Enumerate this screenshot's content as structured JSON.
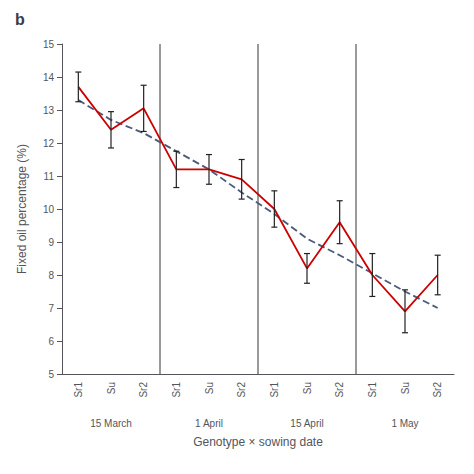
{
  "chart_data": {
    "type": "line",
    "title": "b",
    "categories": [
      "Sr1",
      "Su",
      "Sr2",
      "Sr1",
      "Su",
      "Sr2",
      "Sr1",
      "Su",
      "Sr2",
      "Sr1",
      "Su",
      "Sr2"
    ],
    "group_labels": [
      "15 March",
      "1 April",
      "15 April",
      "1 May"
    ],
    "x_label": "Genotype × sowing date",
    "y_label": "Fixed oil percentage (%)",
    "series": [
      {
        "type": "line",
        "line_style": "dashed",
        "color": "#4a5a7a",
        "values": [
          13.3,
          12.7,
          12.3,
          11.75,
          11.2,
          10.5,
          9.85,
          9.1,
          8.6,
          8.05,
          7.5,
          7.0
        ]
      },
      {
        "type": "line",
        "line_style": "solid",
        "color": "#cc0000",
        "values": [
          13.7,
          12.4,
          13.05,
          11.2,
          11.2,
          10.9,
          10.0,
          8.2,
          9.6,
          8.0,
          6.9,
          8.0
        ],
        "errors": [
          0.45,
          0.55,
          0.7,
          0.55,
          0.45,
          0.6,
          0.55,
          0.45,
          0.65,
          0.65,
          0.65,
          0.6
        ],
        "error_color": "#222222"
      }
    ],
    "ylim": [
      5,
      15
    ],
    "yticks": [
      5,
      6,
      7,
      8,
      9,
      10,
      11,
      12,
      13,
      14,
      15
    ],
    "grid": false
  }
}
